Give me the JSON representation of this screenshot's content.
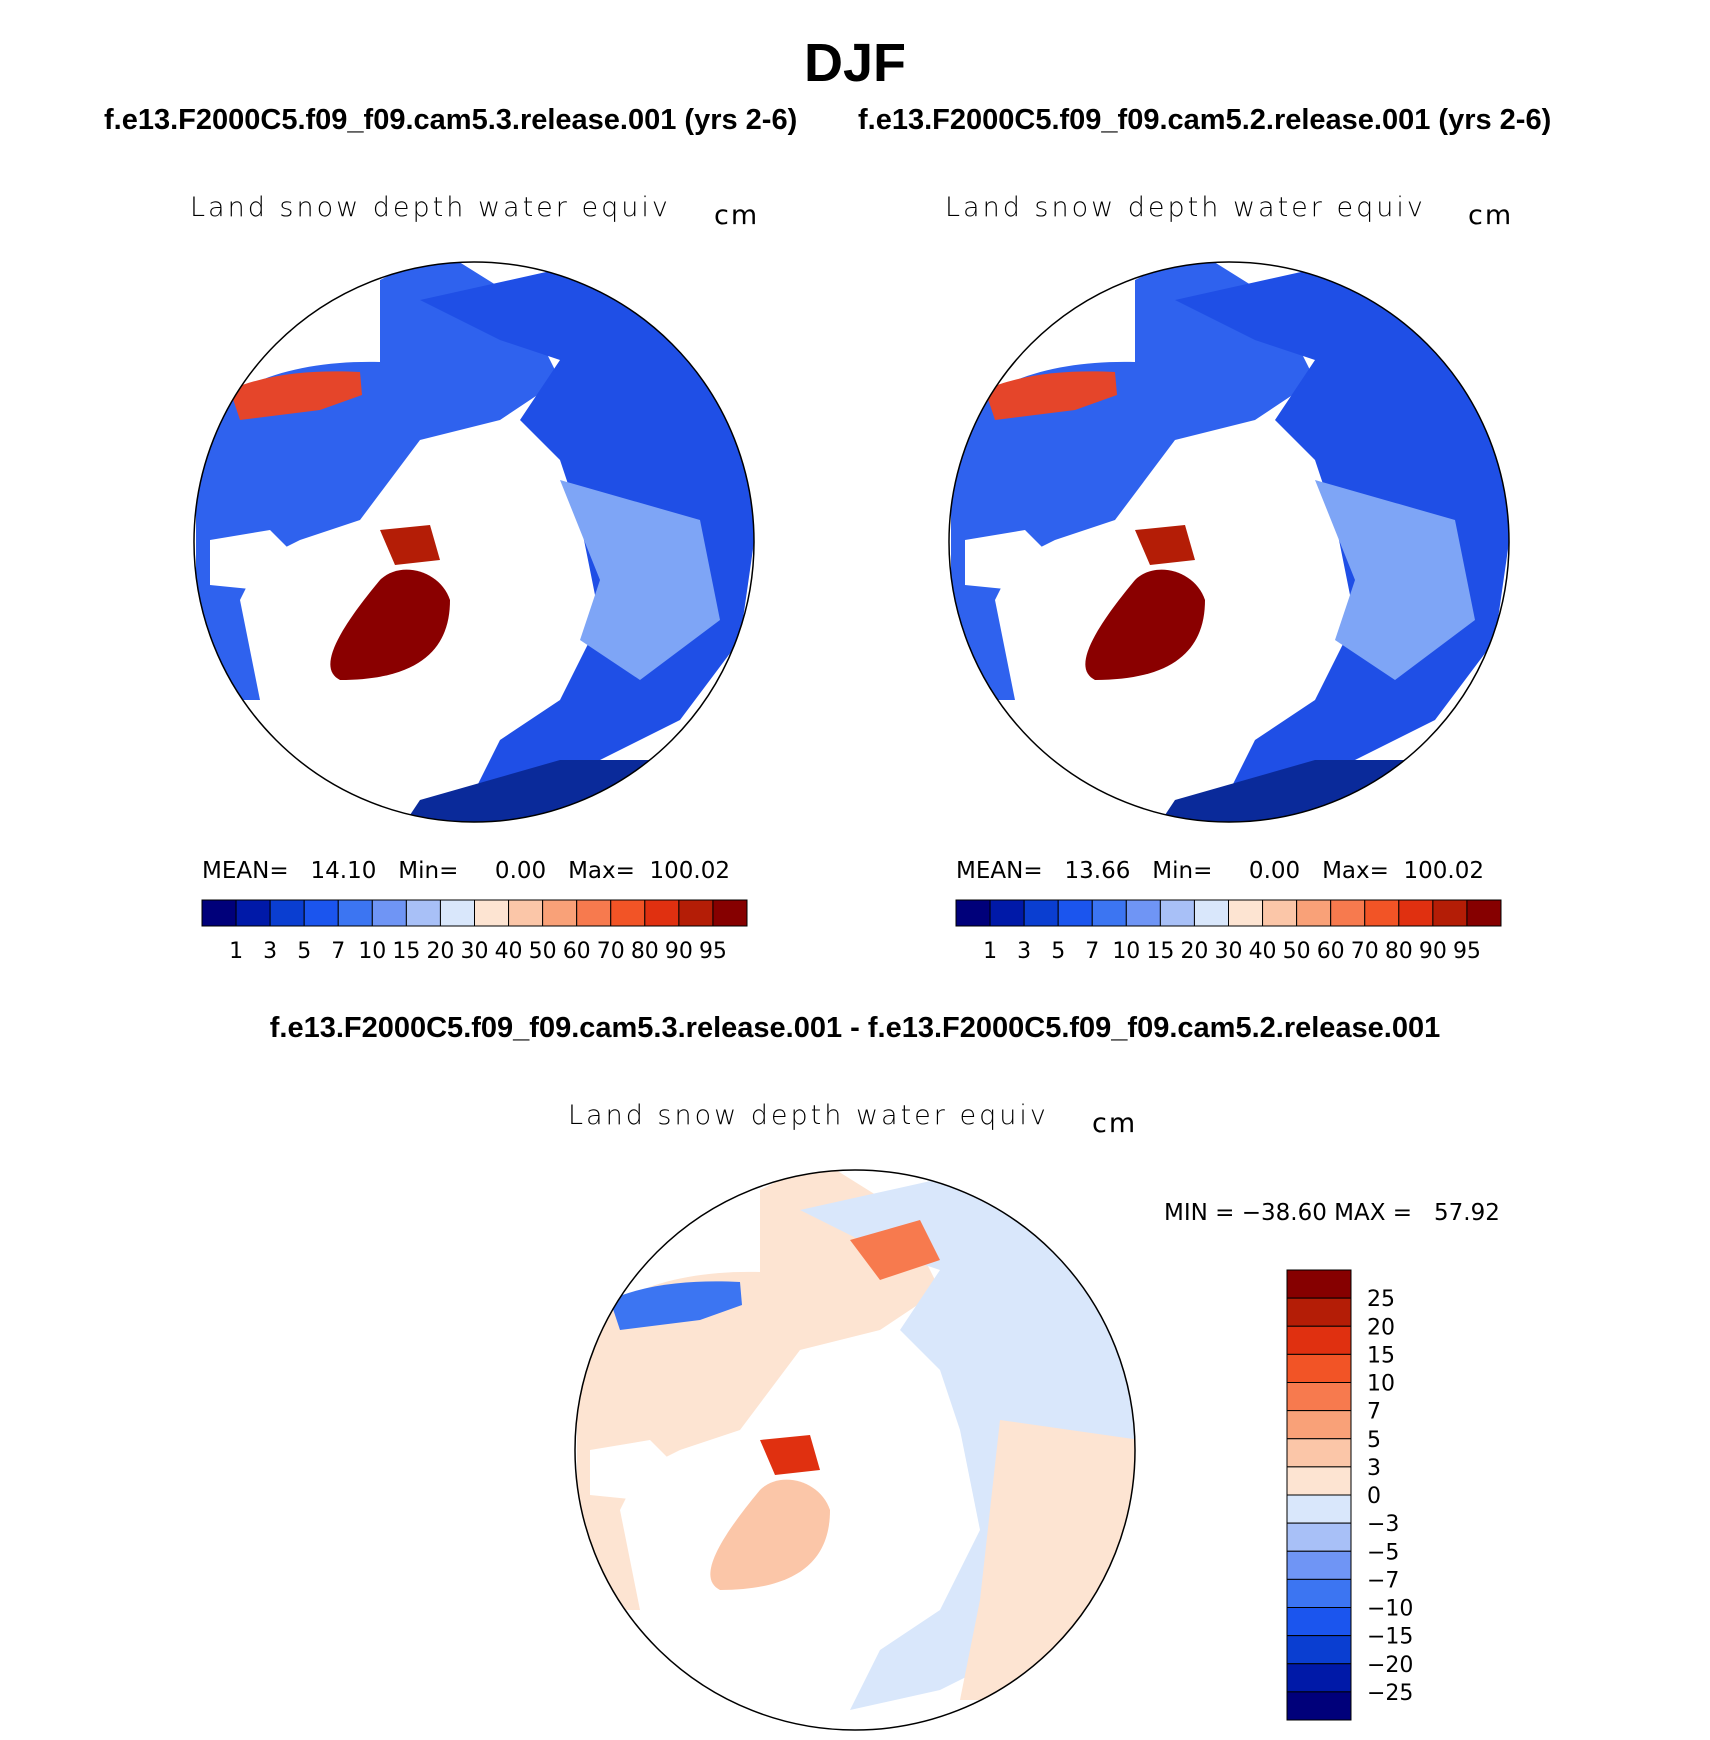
{
  "title": "DJF",
  "panels": [
    {
      "case": "f.e13.F2000C5.f09_f09.cam5.3.release.001 (yrs 2-6)",
      "variable": "Land snow depth water equiv",
      "units": "cm",
      "stats": "MEAN=   14.10   Min=     0.00   Max=  100.02"
    },
    {
      "case": "f.e13.F2000C5.f09_f09.cam5.2.release.001 (yrs 2-6)",
      "variable": "Land snow depth water equiv",
      "units": "cm",
      "stats": "MEAN=   13.66   Min=     0.00   Max=  100.02"
    }
  ],
  "difference": {
    "title": "f.e13.F2000C5.f09_f09.cam5.3.release.001 - f.e13.F2000C5.f09_f09.cam5.2.release.001",
    "variable": "Land snow depth water equiv",
    "units": "cm",
    "stats": "MIN = −38.60 MAX =   57.92"
  },
  "colorbar_abs": {
    "colors": [
      "#00007a",
      "#0019a8",
      "#0a3ed1",
      "#1b55ee",
      "#3c75f2",
      "#6f95f5",
      "#a8c0f7",
      "#d9e7fb",
      "#fde4d2",
      "#fbc6a8",
      "#f9a178",
      "#f77a4e",
      "#f25426",
      "#e03010",
      "#b41d06",
      "#860000"
    ],
    "labels": [
      "1",
      "3",
      "5",
      "7",
      "10",
      "15",
      "20",
      "30",
      "40",
      "50",
      "60",
      "70",
      "80",
      "90",
      "95"
    ]
  },
  "colorbar_diff": {
    "colors": [
      "#860000",
      "#b41d06",
      "#e03010",
      "#f25426",
      "#f77a4e",
      "#f9a178",
      "#fbc6a8",
      "#fde4d2",
      "#d9e7fb",
      "#a8c0f7",
      "#6f95f5",
      "#3c75f2",
      "#1b55ee",
      "#0a3ed1",
      "#0019a8",
      "#00007a"
    ],
    "labels": [
      "25",
      "20",
      "15",
      "10",
      "7",
      "5",
      "3",
      "0",
      "−3",
      "−5",
      "−7",
      "−10",
      "−15",
      "−20",
      "−25"
    ]
  }
}
